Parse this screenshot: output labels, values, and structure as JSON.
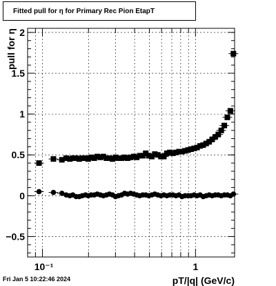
{
  "chart_data": {
    "type": "scatter",
    "title": "Fitted pull for  η for Primary Rec Pion EtapT",
    "xlabel": "pT/|q| (GeV/c)",
    "ylabel": "pull for  η",
    "xscale": "log",
    "xlim": [
      0.08,
      1.8
    ],
    "ylim": [
      -0.75,
      2.05
    ],
    "grid": true,
    "legend": "none",
    "x_tick_labels": [
      "10⁻¹",
      "1"
    ],
    "y_tick_labels": [
      "−0.5",
      "0",
      "0.5",
      "1",
      "1.5",
      "2"
    ],
    "y_ticks": [
      -0.5,
      0,
      0.5,
      1,
      1.5,
      2
    ],
    "series": [
      {
        "marker": "square",
        "x": [
          0.095,
          0.118,
          0.134,
          0.143,
          0.151,
          0.158,
          0.166,
          0.174,
          0.182,
          0.191,
          0.199,
          0.208,
          0.218,
          0.228,
          0.239,
          0.25,
          0.262,
          0.274,
          0.287,
          0.3,
          0.314,
          0.329,
          0.344,
          0.36,
          0.377,
          0.395,
          0.413,
          0.432,
          0.452,
          0.473,
          0.495,
          0.518,
          0.542,
          0.567,
          0.594,
          0.621,
          0.65,
          0.68,
          0.712,
          0.745,
          0.78,
          0.816,
          0.854,
          0.894,
          0.935,
          0.979,
          1.024,
          1.072,
          1.122,
          1.174,
          1.228,
          1.285,
          1.345,
          1.408,
          1.473,
          1.542,
          1.614,
          1.689,
          1.768
        ],
        "y": [
          0.4,
          0.45,
          0.44,
          0.46,
          0.45,
          0.46,
          0.46,
          0.45,
          0.46,
          0.46,
          0.45,
          0.47,
          0.46,
          0.48,
          0.47,
          0.48,
          0.46,
          0.46,
          0.45,
          0.47,
          0.46,
          0.46,
          0.47,
          0.46,
          0.47,
          0.48,
          0.47,
          0.49,
          0.49,
          0.52,
          0.49,
          0.48,
          0.51,
          0.5,
          0.48,
          0.48,
          0.52,
          0.53,
          0.52,
          0.53,
          0.54,
          0.54,
          0.55,
          0.56,
          0.57,
          0.58,
          0.59,
          0.61,
          0.62,
          0.64,
          0.66,
          0.69,
          0.72,
          0.75,
          0.8,
          0.86,
          0.96,
          1.04,
          1.74
        ]
      },
      {
        "marker": "circle",
        "x": [
          0.095,
          0.118,
          0.134,
          0.143,
          0.151,
          0.158,
          0.166,
          0.174,
          0.182,
          0.191,
          0.199,
          0.208,
          0.218,
          0.228,
          0.239,
          0.25,
          0.262,
          0.274,
          0.287,
          0.3,
          0.314,
          0.329,
          0.344,
          0.36,
          0.377,
          0.395,
          0.413,
          0.432,
          0.452,
          0.473,
          0.495,
          0.518,
          0.542,
          0.567,
          0.594,
          0.621,
          0.65,
          0.68,
          0.712,
          0.745,
          0.78,
          0.816,
          0.854,
          0.894,
          0.935,
          0.979,
          1.024,
          1.072,
          1.122,
          1.174,
          1.228,
          1.285,
          1.345,
          1.408,
          1.473,
          1.542,
          1.614,
          1.689,
          1.768
        ],
        "y": [
          0.05,
          0.04,
          0.03,
          0.01,
          0.0,
          0.01,
          -0.01,
          -0.01,
          0.0,
          0.01,
          0.0,
          0.01,
          0.01,
          0.02,
          0.01,
          0.0,
          0.01,
          0.02,
          0.01,
          -0.01,
          0.0,
          0.01,
          0.03,
          0.02,
          0.03,
          0.02,
          0.01,
          0.0,
          0.01,
          0.01,
          0.0,
          0.01,
          0.02,
          0.01,
          0.0,
          0.01,
          0.0,
          0.01,
          0.01,
          0.0,
          0.01,
          -0.01,
          0.0,
          0.0,
          0.0,
          0.01,
          0.0,
          0.01,
          -0.01,
          0.0,
          0.01,
          0.0,
          0.01,
          0.01,
          0.0,
          0.01,
          0.01,
          0.0,
          0.02
        ]
      }
    ]
  },
  "footer": {
    "timestamp": "Fri Jan  5 10:22:46 2024"
  }
}
